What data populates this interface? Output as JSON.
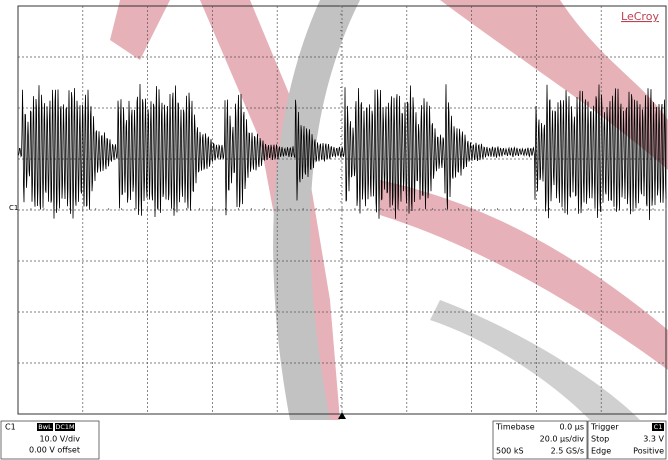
{
  "screen": {
    "brand": "LeCroy",
    "channel_marker": "C1",
    "channel_panel": {
      "name": "C1",
      "badges": [
        "BwL",
        "DC1M"
      ],
      "scale": "10.0 V/div",
      "offset": "0.00 V offset"
    },
    "timebase_panel": {
      "title": "Timebase",
      "delay": "0.0 µs",
      "scale": "20.0 µs/div",
      "samples": "500 kS",
      "rate": "2.5 GS/s"
    },
    "trigger_panel": {
      "title": "Trigger",
      "source": "C1",
      "mode": "Stop",
      "level": "3.3 V",
      "type": "Edge",
      "slope": "Positive"
    }
  }
}
